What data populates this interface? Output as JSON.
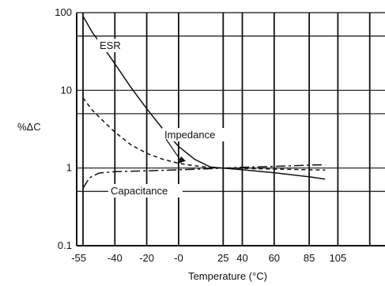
{
  "chart_data": {
    "type": "line",
    "xlabel": "Temperature (°C)",
    "ylabel": "%ΔC",
    "y_scale": "log",
    "ylim": [
      0.1,
      100
    ],
    "y_ticks": [
      {
        "value": 0.1,
        "label": "0.1"
      },
      {
        "value": 1,
        "label": "1"
      },
      {
        "value": 10,
        "label": "10"
      },
      {
        "value": 100,
        "label": "100"
      }
    ],
    "x_ticks": [
      {
        "label": "-55",
        "pos": 0.0
      },
      {
        "label": "-40",
        "pos": 1.0
      },
      {
        "label": "-20",
        "pos": 2.0
      },
      {
        "label": "-0",
        "pos": 3.0
      },
      {
        "label": "25",
        "pos": 4.4
      },
      {
        "label": "40",
        "pos": 5.0
      },
      {
        "label": "60",
        "pos": 6.0
      },
      {
        "label": "85",
        "pos": 7.1
      },
      {
        "label": "105",
        "pos": 8.0
      }
    ],
    "grid": true,
    "series": [
      {
        "name": "ESR",
        "style": "solid",
        "points": [
          [
            0.0,
            90
          ],
          [
            0.3,
            55
          ],
          [
            0.7,
            33
          ],
          [
            1.0,
            22
          ],
          [
            1.5,
            11
          ],
          [
            2.0,
            5.8
          ],
          [
            2.5,
            3.2
          ],
          [
            3.0,
            1.9
          ],
          [
            3.5,
            1.3
          ],
          [
            4.0,
            1.03
          ],
          [
            4.4,
            1.0
          ],
          [
            5.0,
            0.95
          ],
          [
            6.0,
            0.87
          ],
          [
            7.1,
            0.77
          ],
          [
            7.6,
            0.72
          ]
        ]
      },
      {
        "name": "Impedance",
        "style": "dashed",
        "points": [
          [
            0.0,
            8
          ],
          [
            0.3,
            5.5
          ],
          [
            0.7,
            3.8
          ],
          [
            1.0,
            2.9
          ],
          [
            1.5,
            2.0
          ],
          [
            2.0,
            1.55
          ],
          [
            2.5,
            1.3
          ],
          [
            3.0,
            1.15
          ],
          [
            3.5,
            1.07
          ],
          [
            4.0,
            1.02
          ],
          [
            4.4,
            1.0
          ],
          [
            5.0,
            0.99
          ],
          [
            6.0,
            0.97
          ],
          [
            7.1,
            0.95
          ],
          [
            7.6,
            0.94
          ]
        ]
      },
      {
        "name": "Capacitance",
        "style": "dashdot",
        "points": [
          [
            0.0,
            0.55
          ],
          [
            0.2,
            0.75
          ],
          [
            0.5,
            0.86
          ],
          [
            1.0,
            0.9
          ],
          [
            2.0,
            0.92
          ],
          [
            3.0,
            0.95
          ],
          [
            4.0,
            0.98
          ],
          [
            4.4,
            1.0
          ],
          [
            5.0,
            1.02
          ],
          [
            6.0,
            1.05
          ],
          [
            7.1,
            1.09
          ],
          [
            7.6,
            1.1
          ]
        ]
      }
    ],
    "annotations": [
      {
        "text": "ESR",
        "series": "ESR"
      },
      {
        "text": "Impedance",
        "series": "Impedance"
      },
      {
        "text": "Capacitance",
        "series": "Capacitance"
      }
    ]
  }
}
